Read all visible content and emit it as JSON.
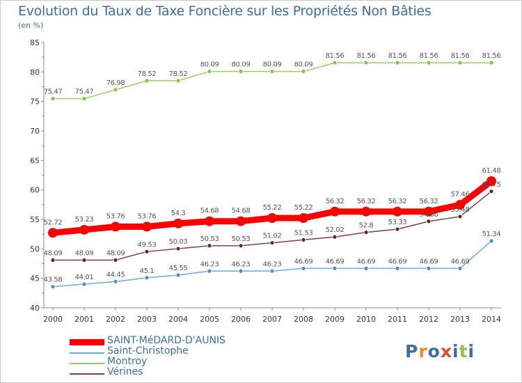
{
  "title": "Evolution du Taux de Taxe Foncière sur les Propriétés Non Bâties",
  "unit_label": "(en %)",
  "logo_text": "Proxiti",
  "chart_data": {
    "type": "line",
    "title": "Evolution du Taux de Taxe Foncière sur les Propriétés Non Bâties",
    "ylabel": "(en %)",
    "xlabel": "",
    "ylim": [
      40,
      85
    ],
    "yticks": [
      40,
      45,
      50,
      55,
      60,
      65,
      70,
      75,
      80,
      85
    ],
    "grid": false,
    "legend": "bottom-left",
    "x": [
      "2000",
      "2001",
      "2002",
      "2003",
      "2004",
      "2005",
      "2006",
      "2007",
      "2008",
      "2009",
      "2010",
      "2011",
      "2012",
      "2013",
      "2014"
    ],
    "series": [
      {
        "name": "Montroy",
        "color": "#99cc66",
        "marker_color": "#77cc33",
        "values": [
          75.47,
          75.47,
          76.98,
          78.52,
          78.52,
          80.09,
          80.09,
          80.09,
          80.09,
          81.56,
          81.56,
          81.56,
          81.56,
          81.56,
          81.56
        ],
        "labels": [
          "75.47",
          "75.47",
          "76.98",
          "78.52",
          "78.52",
          "80.09",
          "80.09",
          "80.09",
          "80.09",
          "81.56",
          "81.56",
          "81.56",
          "81.56",
          "81.56",
          "81.56"
        ]
      },
      {
        "name": "Vérines",
        "color": "#804040",
        "marker_color": "#602828",
        "values": [
          48.09,
          48.09,
          48.09,
          49.53,
          50.03,
          50.53,
          50.53,
          51.02,
          51.53,
          52.02,
          52.8,
          53.33,
          54.66,
          55.48,
          59.75
        ],
        "labels": [
          "48.09",
          "48.09",
          "48.09",
          "49.53",
          "50.03",
          "50.53",
          "50.53",
          "51.02",
          "51.53",
          "52.02",
          "52.8",
          "53.33",
          "54.66",
          "55.48",
          "59.75"
        ]
      },
      {
        "name": "Saint-Christophe",
        "color": "#6fa8d8",
        "marker_color": "#4a8cc8",
        "values": [
          43.58,
          44.01,
          44.45,
          45.1,
          45.55,
          46.23,
          46.23,
          46.23,
          46.69,
          46.69,
          46.69,
          46.69,
          46.69,
          46.69,
          51.34
        ],
        "labels": [
          "43.58",
          "44.01",
          "44.45",
          "45.1",
          "45.55",
          "46.23",
          "46.23",
          "46.23",
          "46.69",
          "46.69",
          "46.69",
          "46.69",
          "46.69",
          "46.69",
          "51.34"
        ]
      },
      {
        "name": "SAINT-MéDARD-D'AUNIS",
        "color": "#ff0000",
        "marker_color": "#ff0000",
        "values": [
          52.72,
          53.23,
          53.76,
          53.76,
          54.3,
          54.68,
          54.68,
          55.22,
          55.22,
          56.32,
          56.32,
          56.32,
          56.32,
          57.46,
          61.48
        ],
        "labels": [
          "52.72",
          "53.23",
          "53.76",
          "53.76",
          "54.3",
          "54.68",
          "54.68",
          "55.22",
          "55.22",
          "56.32",
          "56.32",
          "56.32",
          "56.32",
          "57.46",
          "61.48"
        ]
      }
    ],
    "legend_entries": [
      {
        "name": "SAINT-MéDARD-D'AUNIS",
        "color": "#ff0000"
      },
      {
        "name": "Saint-Christophe",
        "color": "#6fa8d8"
      },
      {
        "name": "Montroy",
        "color": "#99cc66"
      },
      {
        "name": "Vérines",
        "color": "#804040"
      }
    ]
  }
}
